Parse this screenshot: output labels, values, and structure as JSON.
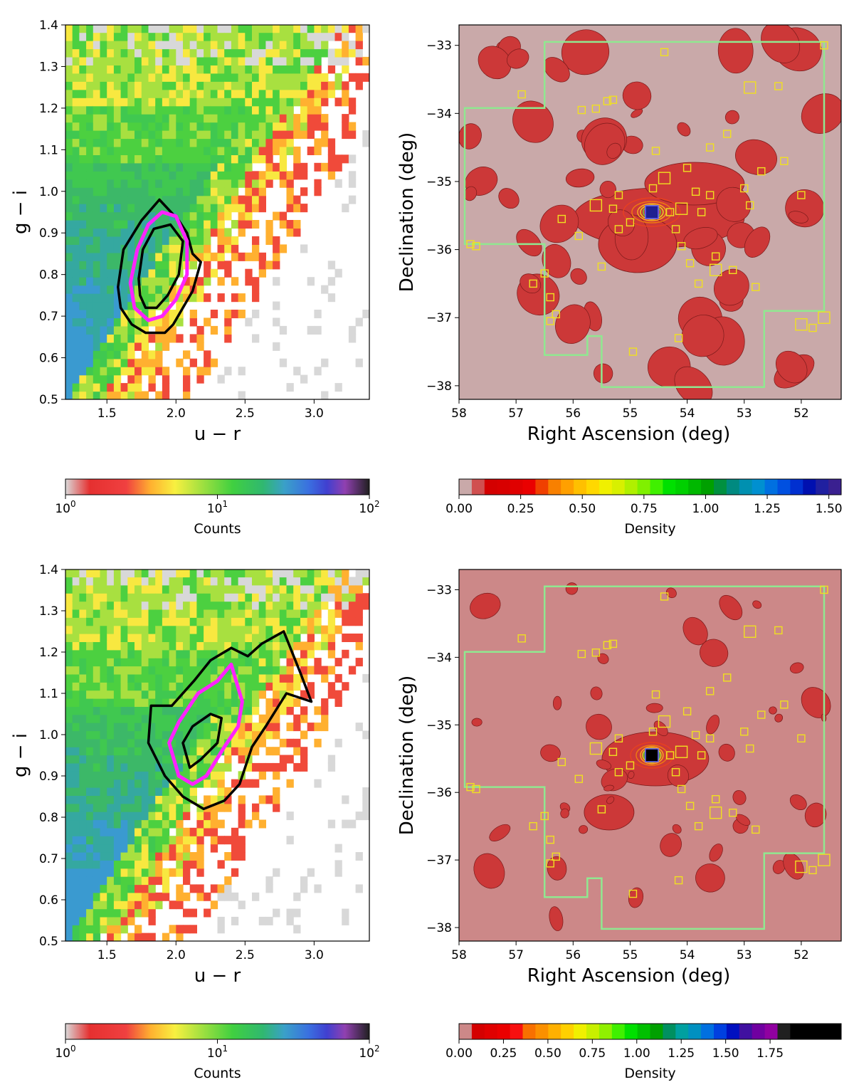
{
  "chart_data": [
    {
      "type": "heatmap",
      "panel": "top-left",
      "xlabel": "u − r",
      "ylabel": "g − i",
      "xlim": [
        1.2,
        3.4
      ],
      "ylim": [
        0.5,
        1.4
      ],
      "xticks": [
        "1.5",
        "2.0",
        "2.5",
        "3.0"
      ],
      "xtick_values": [
        1.5,
        2.0,
        2.5,
        3.0
      ],
      "yticks": [
        "0.5",
        "0.6",
        "0.7",
        "0.8",
        "0.9",
        "1.0",
        "1.1",
        "1.2",
        "1.3",
        "1.4"
      ],
      "ytick_values": [
        0.5,
        0.6,
        0.7,
        0.8,
        0.9,
        1.0,
        1.1,
        1.2,
        1.3,
        1.4
      ],
      "contours": {
        "outer_black": [
          [
            1.58,
            0.77
          ],
          [
            1.62,
            0.86
          ],
          [
            1.75,
            0.93
          ],
          [
            1.88,
            0.98
          ],
          [
            2.02,
            0.93
          ],
          [
            2.08,
            0.9
          ],
          [
            2.12,
            0.85
          ],
          [
            2.18,
            0.83
          ],
          [
            2.12,
            0.76
          ],
          [
            2.05,
            0.72
          ],
          [
            1.98,
            0.68
          ],
          [
            1.92,
            0.66
          ],
          [
            1.78,
            0.66
          ],
          [
            1.68,
            0.68
          ],
          [
            1.6,
            0.72
          ]
        ],
        "magenta": [
          [
            1.67,
            0.78
          ],
          [
            1.72,
            0.86
          ],
          [
            1.8,
            0.92
          ],
          [
            1.9,
            0.95
          ],
          [
            2.0,
            0.94
          ],
          [
            2.08,
            0.88
          ],
          [
            2.08,
            0.8
          ],
          [
            2.0,
            0.74
          ],
          [
            1.9,
            0.7
          ],
          [
            1.8,
            0.69
          ],
          [
            1.7,
            0.72
          ]
        ],
        "inner_black": [
          [
            1.73,
            0.79
          ],
          [
            1.76,
            0.86
          ],
          [
            1.84,
            0.91
          ],
          [
            1.96,
            0.92
          ],
          [
            2.05,
            0.88
          ],
          [
            2.02,
            0.8
          ],
          [
            1.94,
            0.75
          ],
          [
            1.86,
            0.72
          ],
          [
            1.78,
            0.72
          ],
          [
            1.74,
            0.75
          ]
        ]
      },
      "colorbar": {
        "label": "Counts",
        "scale": "log",
        "range": [
          1,
          100
        ],
        "ticks": [
          "1",
          "1",
          "1"
        ],
        "tick_exponents": [
          "0",
          "1",
          "2"
        ],
        "tick_base": "10"
      }
    },
    {
      "type": "heatmap",
      "panel": "top-right",
      "xlabel": "Right Ascension (deg)",
      "ylabel": "Declination (deg)",
      "xlim": [
        58,
        51.3
      ],
      "ylim": [
        -38.2,
        -32.7
      ],
      "xticks": [
        "58",
        "57",
        "56",
        "55",
        "54",
        "53",
        "52"
      ],
      "xtick_values": [
        58,
        57,
        56,
        55,
        54,
        53,
        52
      ],
      "yticks": [
        "−33",
        "−34",
        "−35",
        "−36",
        "−37",
        "−38"
      ],
      "ytick_values": [
        -33,
        -34,
        -35,
        -36,
        -37,
        -38
      ],
      "center": [
        54.62,
        -35.45
      ],
      "footprint": [
        [
          56.5,
          -32.95
        ],
        [
          51.6,
          -32.95
        ],
        [
          51.6,
          -36.9
        ],
        [
          52.65,
          -36.9
        ],
        [
          52.65,
          -38.02
        ],
        [
          55.5,
          -38.02
        ],
        [
          55.5,
          -37.27
        ],
        [
          55.75,
          -37.27
        ],
        [
          55.75,
          -37.55
        ],
        [
          56.5,
          -37.55
        ],
        [
          56.5,
          -35.92
        ],
        [
          57.9,
          -35.92
        ],
        [
          57.9,
          -33.92
        ],
        [
          56.5,
          -33.92
        ]
      ],
      "colorbar": {
        "label": "Density",
        "range": [
          0.0,
          1.55
        ],
        "ticks": [
          "0.00",
          "0.25",
          "0.50",
          "0.75",
          "1.00",
          "1.25",
          "1.50"
        ],
        "tick_values": [
          0,
          0.25,
          0.5,
          0.75,
          1.0,
          1.25,
          1.5
        ]
      }
    },
    {
      "type": "heatmap",
      "panel": "bottom-left",
      "xlabel": "u − r",
      "ylabel": "g − i",
      "xlim": [
        1.2,
        3.4
      ],
      "ylim": [
        0.5,
        1.4
      ],
      "xticks": [
        "1.5",
        "2.0",
        "2.5",
        "3.0"
      ],
      "xtick_values": [
        1.5,
        2.0,
        2.5,
        3.0
      ],
      "yticks": [
        "0.5",
        "0.6",
        "0.7",
        "0.8",
        "0.9",
        "1.0",
        "1.1",
        "1.2",
        "1.3",
        "1.4"
      ],
      "ytick_values": [
        0.5,
        0.6,
        0.7,
        0.8,
        0.9,
        1.0,
        1.1,
        1.2,
        1.3,
        1.4
      ],
      "contours": {
        "outer_black": [
          [
            1.8,
            0.98
          ],
          [
            1.82,
            1.07
          ],
          [
            1.97,
            1.07
          ],
          [
            2.13,
            1.13
          ],
          [
            2.25,
            1.18
          ],
          [
            2.4,
            1.21
          ],
          [
            2.52,
            1.19
          ],
          [
            2.62,
            1.22
          ],
          [
            2.78,
            1.25
          ],
          [
            2.9,
            1.15
          ],
          [
            2.98,
            1.08
          ],
          [
            2.8,
            1.1
          ],
          [
            2.65,
            1.02
          ],
          [
            2.55,
            0.97
          ],
          [
            2.46,
            0.88
          ],
          [
            2.35,
            0.84
          ],
          [
            2.2,
            0.82
          ],
          [
            2.05,
            0.85
          ],
          [
            1.92,
            0.9
          ]
        ],
        "magenta": [
          [
            1.95,
            0.98
          ],
          [
            2.02,
            1.03
          ],
          [
            2.16,
            1.1
          ],
          [
            2.3,
            1.13
          ],
          [
            2.4,
            1.17
          ],
          [
            2.48,
            1.08
          ],
          [
            2.45,
            1.02
          ],
          [
            2.35,
            0.97
          ],
          [
            2.22,
            0.9
          ],
          [
            2.12,
            0.88
          ],
          [
            2.02,
            0.9
          ]
        ],
        "inner_black": [
          [
            2.05,
            0.98
          ],
          [
            2.12,
            1.02
          ],
          [
            2.25,
            1.05
          ],
          [
            2.33,
            1.04
          ],
          [
            2.3,
            0.98
          ],
          [
            2.18,
            0.94
          ],
          [
            2.1,
            0.92
          ]
        ]
      },
      "colorbar": {
        "label": "Counts",
        "scale": "log",
        "range": [
          1,
          100
        ],
        "ticks": [
          "1",
          "1",
          "1"
        ],
        "tick_exponents": [
          "0",
          "1",
          "2"
        ],
        "tick_base": "10"
      }
    },
    {
      "type": "heatmap",
      "panel": "bottom-right",
      "xlabel": "Right Ascension (deg)",
      "ylabel": "Declination (deg)",
      "xlim": [
        58,
        51.3
      ],
      "ylim": [
        -38.2,
        -32.7
      ],
      "xticks": [
        "58",
        "57",
        "56",
        "55",
        "54",
        "53",
        "52"
      ],
      "xtick_values": [
        58,
        57,
        56,
        55,
        54,
        53,
        52
      ],
      "yticks": [
        "−33",
        "−34",
        "−35",
        "−36",
        "−37",
        "−38"
      ],
      "ytick_values": [
        -33,
        -34,
        -35,
        -36,
        -37,
        -38
      ],
      "center": [
        54.62,
        -35.45
      ],
      "footprint": [
        [
          56.5,
          -32.95
        ],
        [
          51.6,
          -32.95
        ],
        [
          51.6,
          -36.9
        ],
        [
          52.65,
          -36.9
        ],
        [
          52.65,
          -38.02
        ],
        [
          55.5,
          -38.02
        ],
        [
          55.5,
          -37.27
        ],
        [
          55.75,
          -37.27
        ],
        [
          55.75,
          -37.55
        ],
        [
          56.5,
          -37.55
        ],
        [
          56.5,
          -35.92
        ],
        [
          57.9,
          -35.92
        ],
        [
          57.9,
          -33.92
        ],
        [
          56.5,
          -33.92
        ]
      ],
      "colorbar": {
        "label": "Density",
        "range": [
          0.0,
          2.15
        ],
        "ticks": [
          "0.00",
          "0.25",
          "0.50",
          "0.75",
          "1.00",
          "1.25",
          "1.50",
          "1.75"
        ],
        "tick_values": [
          0,
          0.25,
          0.5,
          0.75,
          1.0,
          1.25,
          1.5,
          1.75
        ]
      }
    }
  ],
  "sources": {
    "squares": [
      [
        57.8,
        -35.92
      ],
      [
        57.7,
        -35.95
      ],
      [
        56.9,
        -33.72
      ],
      [
        56.7,
        -36.5
      ],
      [
        56.5,
        -36.35
      ],
      [
        56.4,
        -36.7
      ],
      [
        56.4,
        -37.05
      ],
      [
        56.3,
        -36.95
      ],
      [
        56.2,
        -35.55
      ],
      [
        55.9,
        -35.8
      ],
      [
        55.85,
        -33.95
      ],
      [
        55.6,
        -33.93
      ],
      [
        55.5,
        -36.25
      ],
      [
        55.4,
        -33.82
      ],
      [
        55.3,
        -33.8
      ],
      [
        55.3,
        -35.4
      ],
      [
        55.2,
        -35.2
      ],
      [
        55.2,
        -35.7
      ],
      [
        55.0,
        -35.6
      ],
      [
        54.95,
        -37.5
      ],
      [
        54.6,
        -35.1
      ],
      [
        54.55,
        -34.55
      ],
      [
        54.4,
        -33.1
      ],
      [
        54.3,
        -35.45
      ],
      [
        54.2,
        -35.7
      ],
      [
        54.15,
        -37.3
      ],
      [
        54.1,
        -35.95
      ],
      [
        54.0,
        -34.8
      ],
      [
        53.95,
        -36.2
      ],
      [
        53.85,
        -35.15
      ],
      [
        53.8,
        -36.5
      ],
      [
        53.75,
        -35.45
      ],
      [
        53.6,
        -35.2
      ],
      [
        53.6,
        -34.5
      ],
      [
        53.5,
        -36.1
      ],
      [
        53.3,
        -34.3
      ],
      [
        53.2,
        -36.3
      ],
      [
        53.0,
        -35.1
      ],
      [
        52.9,
        -35.35
      ],
      [
        52.8,
        -36.55
      ],
      [
        52.7,
        -34.85
      ],
      [
        52.4,
        -33.6
      ],
      [
        52.3,
        -34.7
      ],
      [
        52.0,
        -35.2
      ],
      [
        51.8,
        -37.15
      ],
      [
        51.6,
        -33.0
      ]
    ],
    "big_squares": [
      [
        54.4,
        -34.95
      ],
      [
        53.5,
        -36.3
      ],
      [
        52.9,
        -33.62
      ],
      [
        52.0,
        -37.1
      ],
      [
        51.6,
        -37.0
      ],
      [
        54.1,
        -35.4
      ],
      [
        55.6,
        -35.35
      ]
    ]
  }
}
